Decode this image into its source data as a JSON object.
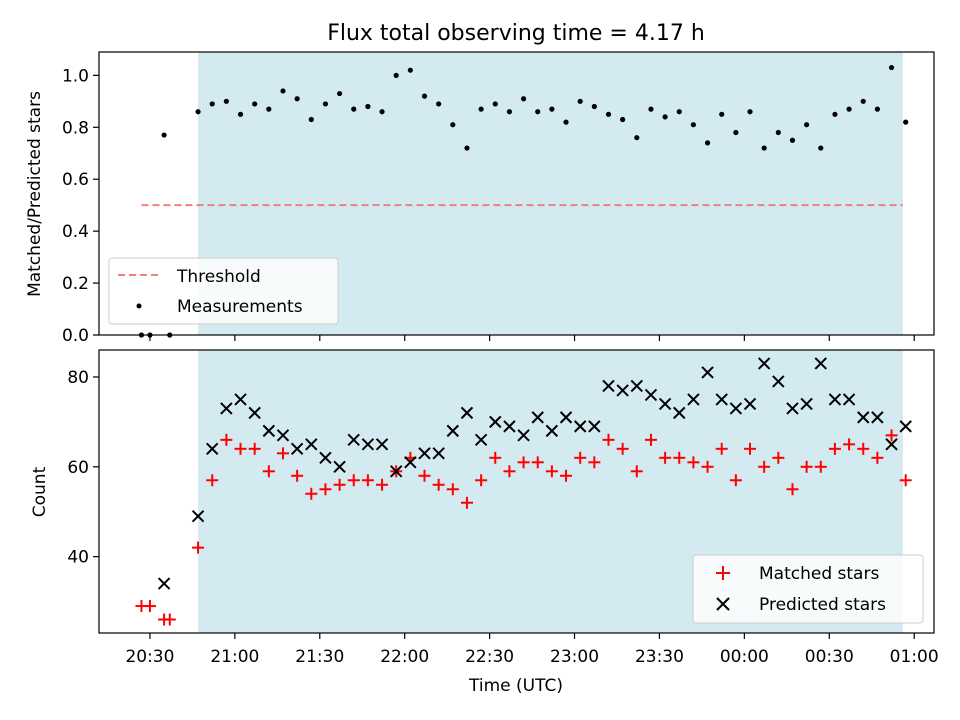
{
  "title": "Flux total observing time = 4.17 h",
  "colors": {
    "shade": "#d4eaf1",
    "threshold": "#f08080",
    "matched": "#ff0000",
    "predicted": "#000000",
    "measurement": "#000000"
  },
  "chart_data": [
    {
      "type": "scatter",
      "panel": "top",
      "ylabel": "Matched/Predicted stars",
      "ylim": [
        0,
        1.09
      ],
      "yticks": [
        0.0,
        0.2,
        0.4,
        0.6,
        0.8,
        1.0
      ],
      "ytick_labels": [
        "0.0",
        "0.2",
        "0.4",
        "0.6",
        "0.8",
        "1.0"
      ],
      "shaded_range": [
        "20:47",
        "00:56"
      ],
      "threshold": {
        "name": "Threshold",
        "value": 0.5,
        "x_range": [
          "20:27",
          "00:56"
        ],
        "style": "dashed"
      },
      "legend": {
        "position": "lower-left",
        "entries": [
          "Threshold",
          "Measurements"
        ]
      },
      "series": [
        {
          "name": "Measurements",
          "points": [
            [
              "20:27",
              0.0
            ],
            [
              "20:30",
              0.0
            ],
            [
              "20:35",
              0.77
            ],
            [
              "20:37",
              0.0
            ],
            [
              "20:47",
              0.86
            ],
            [
              "20:52",
              0.89
            ],
            [
              "20:57",
              0.9
            ],
            [
              "21:02",
              0.85
            ],
            [
              "21:07",
              0.89
            ],
            [
              "21:12",
              0.87
            ],
            [
              "21:17",
              0.94
            ],
            [
              "21:22",
              0.91
            ],
            [
              "21:27",
              0.83
            ],
            [
              "21:32",
              0.89
            ],
            [
              "21:37",
              0.93
            ],
            [
              "21:42",
              0.87
            ],
            [
              "21:47",
              0.88
            ],
            [
              "21:52",
              0.86
            ],
            [
              "21:57",
              1.0
            ],
            [
              "22:02",
              1.02
            ],
            [
              "22:07",
              0.92
            ],
            [
              "22:12",
              0.89
            ],
            [
              "22:17",
              0.81
            ],
            [
              "22:22",
              0.72
            ],
            [
              "22:27",
              0.87
            ],
            [
              "22:32",
              0.89
            ],
            [
              "22:37",
              0.86
            ],
            [
              "22:42",
              0.91
            ],
            [
              "22:47",
              0.86
            ],
            [
              "22:52",
              0.87
            ],
            [
              "22:57",
              0.82
            ],
            [
              "23:02",
              0.9
            ],
            [
              "23:07",
              0.88
            ],
            [
              "23:12",
              0.85
            ],
            [
              "23:17",
              0.83
            ],
            [
              "23:22",
              0.76
            ],
            [
              "23:27",
              0.87
            ],
            [
              "23:32",
              0.84
            ],
            [
              "23:37",
              0.86
            ],
            [
              "23:42",
              0.81
            ],
            [
              "23:47",
              0.74
            ],
            [
              "23:52",
              0.85
            ],
            [
              "23:57",
              0.78
            ],
            [
              "00:02",
              0.86
            ],
            [
              "00:07",
              0.72
            ],
            [
              "00:12",
              0.78
            ],
            [
              "00:17",
              0.75
            ],
            [
              "00:22",
              0.81
            ],
            [
              "00:27",
              0.72
            ],
            [
              "00:32",
              0.85
            ],
            [
              "00:37",
              0.87
            ],
            [
              "00:42",
              0.9
            ],
            [
              "00:47",
              0.87
            ],
            [
              "00:52",
              1.03
            ],
            [
              "00:57",
              0.82
            ]
          ]
        }
      ]
    },
    {
      "type": "scatter",
      "panel": "bottom",
      "ylabel": "Count",
      "xlabel": "Time (UTC)",
      "ylim": [
        23,
        86
      ],
      "yticks": [
        40,
        60,
        80
      ],
      "ytick_labels": [
        "40",
        "60",
        "80"
      ],
      "xlim": [
        "20:12",
        "01:07"
      ],
      "xticks": [
        "20:30",
        "21:00",
        "21:30",
        "22:00",
        "22:30",
        "23:00",
        "23:30",
        "00:00",
        "00:30",
        "01:00"
      ],
      "xtick_labels": [
        "20:30",
        "21:00",
        "21:30",
        "22:00",
        "22:30",
        "23:00",
        "23:30",
        "00:00",
        "00:30",
        "01:00"
      ],
      "shaded_range": [
        "20:47",
        "00:56"
      ],
      "legend": {
        "position": "lower-right",
        "entries": [
          "Matched stars",
          "Predicted stars"
        ]
      },
      "series": [
        {
          "name": "Matched stars",
          "marker": "plus",
          "points": [
            [
              "20:27",
              29
            ],
            [
              "20:30",
              29
            ],
            [
              "20:35",
              26
            ],
            [
              "20:37",
              26
            ],
            [
              "20:47",
              42
            ],
            [
              "20:52",
              57
            ],
            [
              "20:57",
              66
            ],
            [
              "21:02",
              64
            ],
            [
              "21:07",
              64
            ],
            [
              "21:12",
              59
            ],
            [
              "21:17",
              63
            ],
            [
              "21:22",
              58
            ],
            [
              "21:27",
              54
            ],
            [
              "21:32",
              55
            ],
            [
              "21:37",
              56
            ],
            [
              "21:42",
              57
            ],
            [
              "21:47",
              57
            ],
            [
              "21:52",
              56
            ],
            [
              "21:57",
              59
            ],
            [
              "22:02",
              62
            ],
            [
              "22:07",
              58
            ],
            [
              "22:12",
              56
            ],
            [
              "22:17",
              55
            ],
            [
              "22:22",
              52
            ],
            [
              "22:27",
              57
            ],
            [
              "22:32",
              62
            ],
            [
              "22:37",
              59
            ],
            [
              "22:42",
              61
            ],
            [
              "22:47",
              61
            ],
            [
              "22:52",
              59
            ],
            [
              "22:57",
              58
            ],
            [
              "23:02",
              62
            ],
            [
              "23:07",
              61
            ],
            [
              "23:12",
              66
            ],
            [
              "23:17",
              64
            ],
            [
              "23:22",
              59
            ],
            [
              "23:27",
              66
            ],
            [
              "23:32",
              62
            ],
            [
              "23:37",
              62
            ],
            [
              "23:42",
              61
            ],
            [
              "23:47",
              60
            ],
            [
              "23:52",
              64
            ],
            [
              "23:57",
              57
            ],
            [
              "00:02",
              64
            ],
            [
              "00:07",
              60
            ],
            [
              "00:12",
              62
            ],
            [
              "00:17",
              55
            ],
            [
              "00:22",
              60
            ],
            [
              "00:27",
              60
            ],
            [
              "00:32",
              64
            ],
            [
              "00:37",
              65
            ],
            [
              "00:42",
              64
            ],
            [
              "00:47",
              62
            ],
            [
              "00:52",
              67
            ],
            [
              "00:57",
              57
            ]
          ]
        },
        {
          "name": "Predicted stars",
          "marker": "x",
          "points": [
            [
              "20:35",
              34
            ],
            [
              "20:47",
              49
            ],
            [
              "20:52",
              64
            ],
            [
              "20:57",
              73
            ],
            [
              "21:02",
              75
            ],
            [
              "21:07",
              72
            ],
            [
              "21:12",
              68
            ],
            [
              "21:17",
              67
            ],
            [
              "21:22",
              64
            ],
            [
              "21:27",
              65
            ],
            [
              "21:32",
              62
            ],
            [
              "21:37",
              60
            ],
            [
              "21:42",
              66
            ],
            [
              "21:47",
              65
            ],
            [
              "21:52",
              65
            ],
            [
              "21:57",
              59
            ],
            [
              "22:02",
              61
            ],
            [
              "22:07",
              63
            ],
            [
              "22:12",
              63
            ],
            [
              "22:17",
              68
            ],
            [
              "22:22",
              72
            ],
            [
              "22:27",
              66
            ],
            [
              "22:32",
              70
            ],
            [
              "22:37",
              69
            ],
            [
              "22:42",
              67
            ],
            [
              "22:47",
              71
            ],
            [
              "22:52",
              68
            ],
            [
              "22:57",
              71
            ],
            [
              "23:02",
              69
            ],
            [
              "23:07",
              69
            ],
            [
              "23:12",
              78
            ],
            [
              "23:17",
              77
            ],
            [
              "23:22",
              78
            ],
            [
              "23:27",
              76
            ],
            [
              "23:32",
              74
            ],
            [
              "23:37",
              72
            ],
            [
              "23:42",
              75
            ],
            [
              "23:47",
              81
            ],
            [
              "23:52",
              75
            ],
            [
              "23:57",
              73
            ],
            [
              "00:02",
              74
            ],
            [
              "00:07",
              83
            ],
            [
              "00:12",
              79
            ],
            [
              "00:17",
              73
            ],
            [
              "00:22",
              74
            ],
            [
              "00:27",
              83
            ],
            [
              "00:32",
              75
            ],
            [
              "00:37",
              75
            ],
            [
              "00:42",
              71
            ],
            [
              "00:47",
              71
            ],
            [
              "00:52",
              65
            ],
            [
              "00:57",
              69
            ]
          ]
        }
      ]
    }
  ]
}
